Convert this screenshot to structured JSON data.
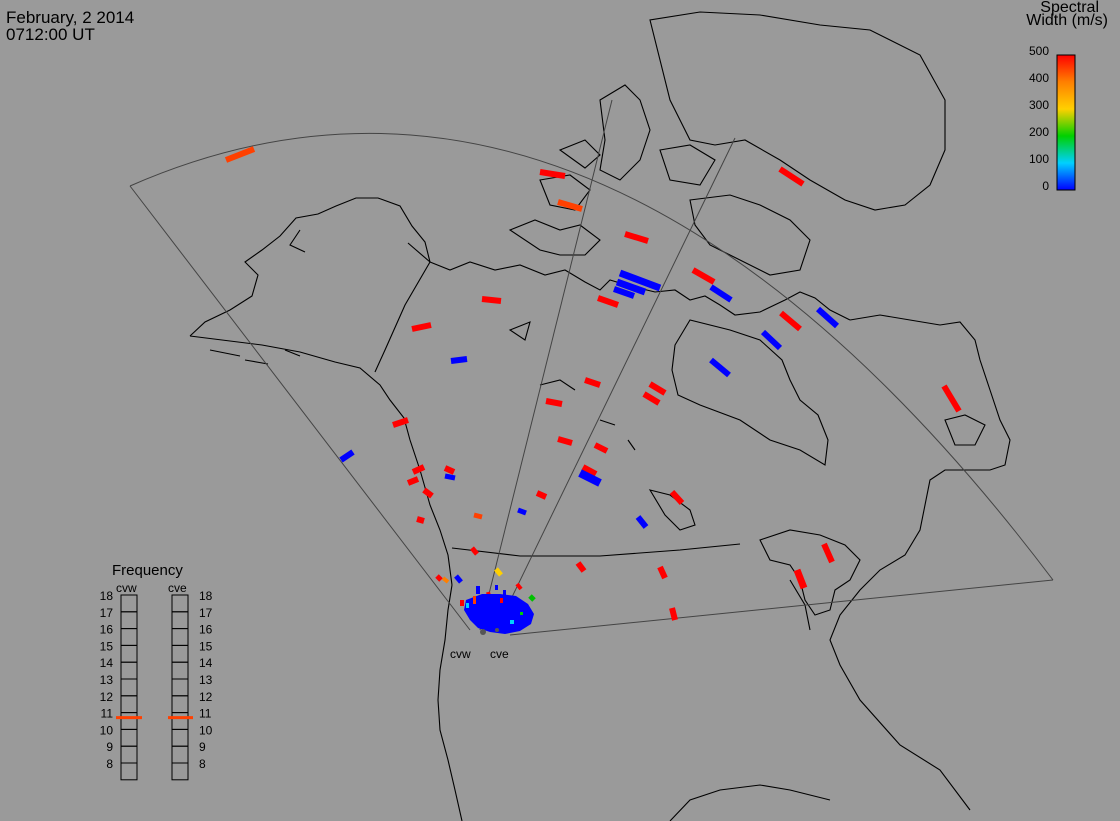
{
  "header": {
    "date": "February, 2 2014",
    "time": "0712:00 UT"
  },
  "color_scale": {
    "title_line1": "Spectral",
    "title_line2": "Width (m/s)",
    "ticks": [
      "500",
      "400",
      "300",
      "200",
      "100",
      "0"
    ],
    "colors": [
      "#ff0000",
      "#ff8000",
      "#ffd000",
      "#00d000",
      "#00d0ff",
      "#0000ff"
    ]
  },
  "frequency_panel": {
    "title": "Frequency",
    "radars": [
      "cvw",
      "cve"
    ],
    "levels": [
      "18",
      "17",
      "16",
      "15",
      "14",
      "13",
      "12",
      "11",
      "10",
      "9",
      "8"
    ],
    "cvw_value": 10.7,
    "cve_value": 10.7,
    "marker_color": "#ff4000"
  },
  "map": {
    "site_labels": [
      "cvw",
      "cve"
    ]
  }
}
